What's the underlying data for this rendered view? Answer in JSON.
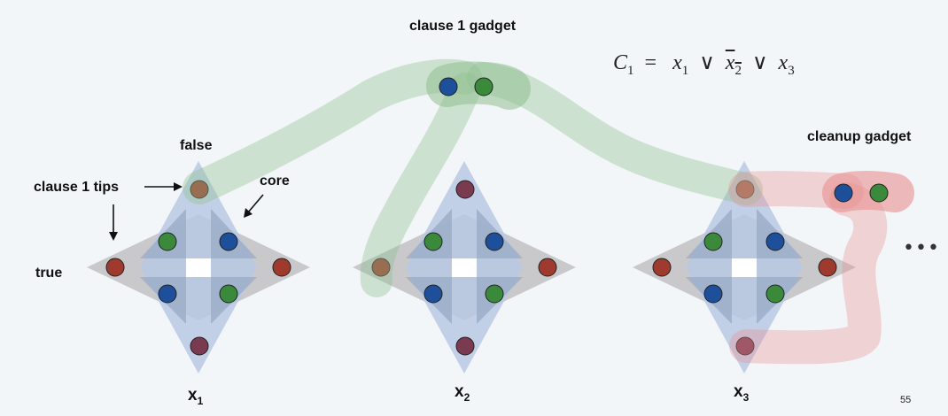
{
  "labels": {
    "clause_gadget": "clause 1 gadget",
    "cleanup_gadget": "cleanup gadget",
    "false": "false",
    "true": "true",
    "clause_tips": "clause 1 tips",
    "core": "core",
    "ellipsis": "•••",
    "page_number": "55"
  },
  "formula": {
    "lhs": "C",
    "lhs_sub": "1",
    "eq": "=",
    "x": "x",
    "sub1": "1",
    "sub2": "2",
    "sub3": "3",
    "or": "∨"
  },
  "variables": [
    {
      "letter": "x",
      "sub": "1"
    },
    {
      "letter": "x",
      "sub": "2"
    },
    {
      "letter": "x",
      "sub": "3"
    }
  ],
  "colors": {
    "background": "#f3f6f9",
    "node_red": "#9e3a2e",
    "node_green": "#3b8a3c",
    "node_blue": "#1d4f9a",
    "node_purple": "#7a3a50",
    "gadget_blue": "#b8c9e4",
    "gadget_gray": "#c9c9cb",
    "clause_highlight": "#8fc08f",
    "cleanup_highlight": "#e88f8f"
  }
}
